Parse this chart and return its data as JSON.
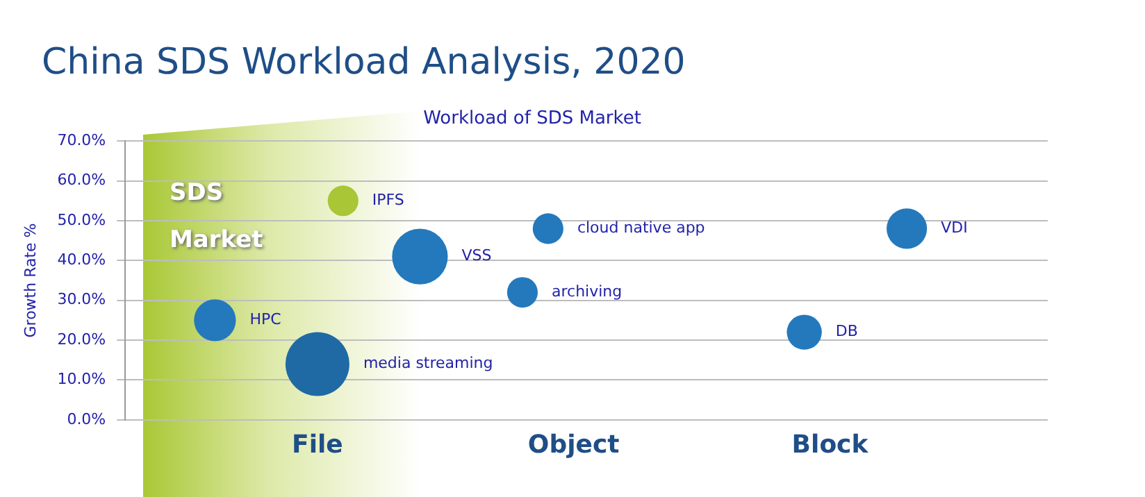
{
  "chart_data": {
    "type": "bubble",
    "title": "China SDS Workload Analysis, 2020",
    "subtitle": "Workload of SDS Market",
    "ylabel": "Growth Rate %",
    "annotations": [
      "SDS Market"
    ],
    "categories": [
      null,
      null,
      null,
      null,
      null,
      null,
      null,
      "File",
      null,
      null,
      null,
      null,
      null,
      null,
      null,
      null,
      null,
      "Object",
      null,
      null,
      null,
      null,
      null,
      null,
      null,
      null,
      null,
      "Block",
      null,
      null,
      null,
      null,
      null,
      null,
      null,
      null
    ],
    "ylim": [
      0,
      70
    ],
    "yticks": [
      {
        "value": 0,
        "label": "0.0%"
      },
      {
        "value": 10,
        "label": "10.0%"
      },
      {
        "value": 20,
        "label": "20.0%"
      },
      {
        "value": 30,
        "label": "30.0%"
      },
      {
        "value": 40,
        "label": "40.0%"
      },
      {
        "value": 50,
        "label": "50.0%"
      },
      {
        "value": 60,
        "label": "60.0%"
      },
      {
        "value": 70,
        "label": "70.0%"
      }
    ],
    "grid": "y",
    "series": [
      {
        "name": "IPFS",
        "color": "#a8c636",
        "values": [
          null,
          null,
          null,
          null,
          null,
          null,
          null,
          null,
          55,
          null,
          null,
          null,
          null,
          null,
          null,
          null,
          null,
          null,
          null,
          null,
          null,
          null,
          null,
          null,
          null,
          null,
          null,
          null,
          null,
          null,
          null,
          null,
          null,
          null,
          null,
          null
        ],
        "sizes": [
          null,
          null,
          null,
          null,
          null,
          null,
          null,
          null,
          0.23,
          null,
          null,
          null,
          null,
          null,
          null,
          null,
          null,
          null,
          null,
          null,
          null,
          null,
          null,
          null,
          null,
          null,
          null,
          null,
          null,
          null,
          null,
          null,
          null,
          null,
          null,
          null
        ]
      },
      {
        "name": "VSS",
        "color": "#2479bd",
        "values": [
          null,
          null,
          null,
          null,
          null,
          null,
          null,
          null,
          null,
          null,
          null,
          41,
          null,
          null,
          null,
          null,
          null,
          null,
          null,
          null,
          null,
          null,
          null,
          null,
          null,
          null,
          null,
          null,
          null,
          null,
          null,
          null,
          null,
          null,
          null,
          null
        ],
        "sizes": [
          null,
          null,
          null,
          null,
          null,
          null,
          null,
          null,
          null,
          null,
          null,
          0.76,
          null,
          null,
          null,
          null,
          null,
          null,
          null,
          null,
          null,
          null,
          null,
          null,
          null,
          null,
          null,
          null,
          null,
          null,
          null,
          null,
          null,
          null,
          null,
          null
        ]
      },
      {
        "name": "HPC",
        "color": "#2479bd",
        "values": [
          null,
          null,
          null,
          25,
          null,
          null,
          null,
          null,
          null,
          null,
          null,
          null,
          null,
          null,
          null,
          null,
          null,
          null,
          null,
          null,
          null,
          null,
          null,
          null,
          null,
          null,
          null,
          null,
          null,
          null,
          null,
          null,
          null,
          null,
          null,
          null
        ],
        "sizes": [
          null,
          null,
          null,
          0.43,
          null,
          null,
          null,
          null,
          null,
          null,
          null,
          null,
          null,
          null,
          null,
          null,
          null,
          null,
          null,
          null,
          null,
          null,
          null,
          null,
          null,
          null,
          null,
          null,
          null,
          null,
          null,
          null,
          null,
          null,
          null,
          null
        ]
      },
      {
        "name": "media streaming",
        "color": "#1f6aa5",
        "values": [
          null,
          null,
          null,
          null,
          null,
          null,
          null,
          14,
          null,
          null,
          null,
          null,
          null,
          null,
          null,
          null,
          null,
          null,
          null,
          null,
          null,
          null,
          null,
          null,
          null,
          null,
          null,
          null,
          null,
          null,
          null,
          null,
          null,
          null,
          null,
          null
        ],
        "sizes": [
          null,
          null,
          null,
          null,
          null,
          null,
          null,
          1,
          null,
          null,
          null,
          null,
          null,
          null,
          null,
          null,
          null,
          null,
          null,
          null,
          null,
          null,
          null,
          null,
          null,
          null,
          null,
          null,
          null,
          null,
          null,
          null,
          null,
          null,
          null,
          null
        ]
      },
      {
        "name": "cloud native app",
        "color": "#2479bd",
        "values": [
          null,
          null,
          null,
          null,
          null,
          null,
          null,
          null,
          null,
          null,
          null,
          null,
          null,
          null,
          null,
          null,
          48,
          null,
          null,
          null,
          null,
          null,
          null,
          null,
          null,
          null,
          null,
          null,
          null,
          null,
          null,
          null,
          null,
          null,
          null,
          null
        ],
        "sizes": [
          null,
          null,
          null,
          null,
          null,
          null,
          null,
          null,
          null,
          null,
          null,
          null,
          null,
          null,
          null,
          null,
          0.23,
          null,
          null,
          null,
          null,
          null,
          null,
          null,
          null,
          null,
          null,
          null,
          null,
          null,
          null,
          null,
          null,
          null,
          null,
          null
        ]
      },
      {
        "name": "archiving",
        "color": "#2479bd",
        "values": [
          null,
          null,
          null,
          null,
          null,
          null,
          null,
          null,
          null,
          null,
          null,
          null,
          null,
          null,
          null,
          32,
          null,
          null,
          null,
          null,
          null,
          null,
          null,
          null,
          null,
          null,
          null,
          null,
          null,
          null,
          null,
          null,
          null,
          null,
          null,
          null
        ],
        "sizes": [
          null,
          null,
          null,
          null,
          null,
          null,
          null,
          null,
          null,
          null,
          null,
          null,
          null,
          null,
          null,
          0.23,
          null,
          null,
          null,
          null,
          null,
          null,
          null,
          null,
          null,
          null,
          null,
          null,
          null,
          null,
          null,
          null,
          null,
          null,
          null,
          null
        ]
      },
      {
        "name": "DB",
        "color": "#2479bd",
        "values": [
          null,
          null,
          null,
          null,
          null,
          null,
          null,
          null,
          null,
          null,
          null,
          null,
          null,
          null,
          null,
          null,
          null,
          null,
          null,
          null,
          null,
          null,
          null,
          null,
          null,
          null,
          22,
          null,
          null,
          null,
          null,
          null,
          null,
          null,
          null,
          null
        ],
        "sizes": [
          null,
          null,
          null,
          null,
          null,
          null,
          null,
          null,
          null,
          null,
          null,
          null,
          null,
          null,
          null,
          null,
          null,
          null,
          null,
          null,
          null,
          null,
          null,
          null,
          null,
          null,
          0.3,
          null,
          null,
          null,
          null,
          null,
          null,
          null,
          null,
          null
        ]
      },
      {
        "name": "VDI",
        "color": "#2479bd",
        "values": [
          null,
          null,
          null,
          null,
          null,
          null,
          null,
          null,
          null,
          null,
          null,
          null,
          null,
          null,
          null,
          null,
          null,
          null,
          null,
          null,
          null,
          null,
          null,
          null,
          null,
          null,
          null,
          null,
          null,
          null,
          48,
          null,
          null,
          null,
          null,
          null
        ],
        "sizes": [
          null,
          null,
          null,
          null,
          null,
          null,
          null,
          null,
          null,
          null,
          null,
          null,
          null,
          null,
          null,
          null,
          null,
          null,
          null,
          null,
          null,
          null,
          null,
          null,
          null,
          null,
          null,
          null,
          null,
          null,
          0.4,
          null,
          null,
          null,
          null,
          null
        ]
      }
    ]
  }
}
